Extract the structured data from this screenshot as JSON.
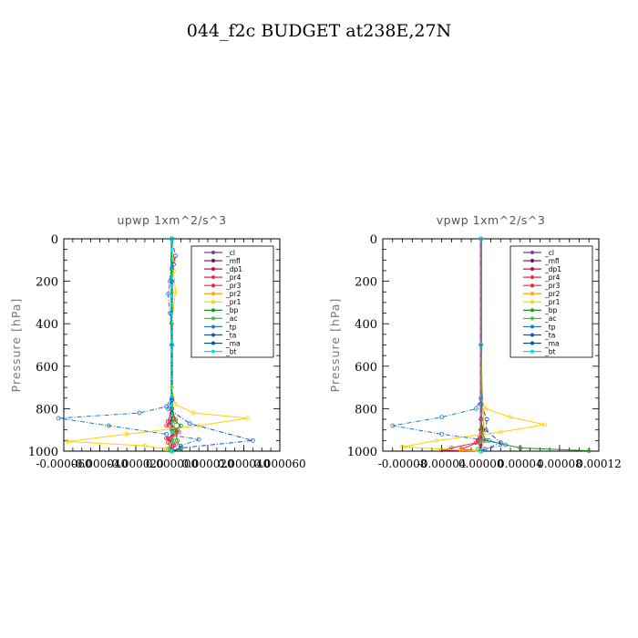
{
  "title": "044_f2c  BUDGET at238E,27N",
  "chart_data": [
    {
      "type": "line",
      "title": "upwp    1xm^2/s^3",
      "ylabel": "Pressure  [hPa]",
      "y_inverted": true,
      "ylim": [
        0,
        1000
      ],
      "xlim": [
        -6e-05,
        6e-05
      ],
      "y_ticks": [
        0,
        200,
        400,
        600,
        800,
        1000
      ],
      "x_tick_labels": [
        "-0.000060",
        "-0.000040",
        "-0.000020",
        "0.000000",
        "0.000020",
        "0.000040",
        "0.000060"
      ],
      "legend": "top-right",
      "series": [
        {
          "name": "_cl",
          "color": "#7b3fa0",
          "points": [
            [
              0,
              0
            ],
            [
              0,
              400
            ],
            [
              0,
              800
            ],
            [
              0,
              1000
            ]
          ]
        },
        {
          "name": "_mfl",
          "color": "#7a0a5a",
          "points": [
            [
              0,
              0
            ],
            [
              0,
              400
            ],
            [
              0,
              800
            ],
            [
              0,
              900
            ],
            [
              0,
              1000
            ]
          ]
        },
        {
          "name": "_dp1",
          "color": "#c0103c",
          "points": [
            [
              0,
              0
            ],
            [
              0,
              800
            ],
            [
              -2e-06,
              860
            ],
            [
              3e-06,
              900
            ],
            [
              -2e-06,
              940
            ],
            [
              1e-06,
              970
            ],
            [
              0,
              1000
            ]
          ]
        },
        {
          "name": "_pr4",
          "color": "#e03050",
          "points": [
            [
              0,
              0
            ],
            [
              0,
              800
            ],
            [
              2e-06,
              850
            ],
            [
              -3e-06,
              880
            ],
            [
              4e-06,
              910
            ],
            [
              -3e-06,
              940
            ],
            [
              2e-06,
              970
            ],
            [
              0,
              1000
            ]
          ]
        },
        {
          "name": "_pr3",
          "color": "#ff2020",
          "points": [
            [
              0,
              0
            ],
            [
              0,
              820
            ],
            [
              -1e-06,
              870
            ],
            [
              2e-06,
              920
            ],
            [
              -2e-06,
              960
            ],
            [
              0,
              1000
            ]
          ]
        },
        {
          "name": "_pr2",
          "color": "#ffa500",
          "points": [
            [
              0,
              0
            ],
            [
              1e-06,
              100
            ],
            [
              0,
              200
            ],
            [
              0,
              500
            ],
            [
              0,
              800
            ],
            [
              2e-06,
              900
            ],
            [
              0,
              1000
            ]
          ]
        },
        {
          "name": "_pr1",
          "color": "#ffd000",
          "points": [
            [
              0,
              0
            ],
            [
              1e-06,
              150
            ],
            [
              2e-06,
              250
            ],
            [
              0,
              400
            ],
            [
              0,
              700
            ],
            [
              2e-06,
              780
            ],
            [
              1.2e-05,
              820
            ],
            [
              4.2e-05,
              845
            ],
            [
              1.5e-05,
              880
            ],
            [
              -2.5e-05,
              920
            ],
            [
              -5.8e-05,
              955
            ],
            [
              -1.5e-05,
              975
            ],
            [
              -3e-06,
              990
            ],
            [
              0,
              1000
            ]
          ]
        },
        {
          "name": "_bp",
          "color": "#209020",
          "points": [
            [
              0,
              0
            ],
            [
              0,
              800
            ],
            [
              2e-06,
              860
            ],
            [
              5e-06,
              880
            ],
            [
              2e-06,
              900
            ],
            [
              3e-06,
              950
            ],
            [
              5e-06,
              990
            ],
            [
              0,
              1000
            ]
          ]
        },
        {
          "name": "_ac",
          "color": "#40c040",
          "points": [
            [
              0,
              0
            ],
            [
              0,
              900
            ],
            [
              1e-06,
              950
            ],
            [
              -2e-06,
              990
            ],
            [
              0,
              1000
            ]
          ]
        },
        {
          "name": "_tp",
          "color": "#1e78c0",
          "points": [
            [
              0,
              0
            ],
            [
              -1e-06,
              200
            ],
            [
              -2e-06,
              260
            ],
            [
              -1e-06,
              350
            ],
            [
              0,
              500
            ],
            [
              0,
              750
            ],
            [
              -3e-06,
              790
            ],
            [
              -1.8e-05,
              820
            ],
            [
              -6.3e-05,
              845
            ],
            [
              -3.5e-05,
              880
            ],
            [
              -3e-06,
              920
            ],
            [
              1.5e-05,
              945
            ],
            [
              5e-06,
              975
            ],
            [
              0,
              1000
            ]
          ]
        },
        {
          "name": "_ta",
          "color": "#1050d0",
          "points": [
            [
              0,
              0
            ],
            [
              2e-06,
              80
            ],
            [
              1e-06,
              120
            ],
            [
              0,
              200
            ],
            [
              0,
              500
            ],
            [
              0,
              760
            ],
            [
              -2e-06,
              800
            ],
            [
              1e-05,
              870
            ],
            [
              4.5e-05,
              950
            ],
            [
              5e-06,
              985
            ],
            [
              0,
              1000
            ]
          ]
        },
        {
          "name": "_ma",
          "color": "#0050a0",
          "points": [
            [
              0,
              0
            ],
            [
              0,
              500
            ],
            [
              0,
              1000
            ]
          ]
        },
        {
          "name": "_bt",
          "color": "#00e0e0",
          "points": [
            [
              0,
              0
            ],
            [
              0,
              500
            ],
            [
              0,
              1000
            ]
          ]
        }
      ]
    },
    {
      "type": "line",
      "title": "vpwp    1xm^2/s^3",
      "ylabel": "Pressure  [hPa]",
      "y_inverted": true,
      "ylim": [
        0,
        1000
      ],
      "xlim": [
        -0.0001,
        0.00012
      ],
      "y_ticks": [
        0,
        200,
        400,
        600,
        800,
        1000
      ],
      "x_tick_labels": [
        "-0.00008",
        "-0.00004",
        "0.00000",
        "0.00004",
        "0.00008",
        "0.00012"
      ],
      "x_tick_values": [
        -8e-05,
        -4e-05,
        0,
        4e-05,
        8e-05,
        0.00012
      ],
      "legend": "top-right",
      "series": [
        {
          "name": "_cl",
          "color": "#7b3fa0",
          "points": [
            [
              0,
              0
            ],
            [
              0,
              500
            ],
            [
              0,
              1000
            ]
          ]
        },
        {
          "name": "_mfl",
          "color": "#7a0a5a",
          "points": [
            [
              0,
              0
            ],
            [
              0,
              500
            ],
            [
              0,
              900
            ],
            [
              0,
              1000
            ]
          ]
        },
        {
          "name": "_dp1",
          "color": "#c0103c",
          "points": [
            [
              0,
              0
            ],
            [
              0,
              850
            ],
            [
              2e-06,
              900
            ],
            [
              -3e-06,
              950
            ],
            [
              0,
              1000
            ]
          ]
        },
        {
          "name": "_pr4",
          "color": "#e03050",
          "points": [
            [
              0,
              0
            ],
            [
              0,
              900
            ],
            [
              -5e-06,
              960
            ],
            [
              -3e-05,
              985
            ],
            [
              -4e-05,
              995
            ],
            [
              0,
              1000
            ]
          ]
        },
        {
          "name": "_pr3",
          "color": "#ff2020",
          "points": [
            [
              0,
              0
            ],
            [
              0,
              900
            ],
            [
              2e-06,
              950
            ],
            [
              -2e-05,
              990
            ],
            [
              0,
              1000
            ]
          ]
        },
        {
          "name": "_pr2",
          "color": "#ffa500",
          "points": [
            [
              0,
              0
            ],
            [
              0,
              500
            ],
            [
              3e-06,
              950
            ],
            [
              0,
              1000
            ]
          ]
        },
        {
          "name": "_pr1",
          "color": "#ffd000",
          "points": [
            [
              0,
              0
            ],
            [
              0,
              750
            ],
            [
              5e-06,
              800
            ],
            [
              3e-05,
              840
            ],
            [
              6.5e-05,
              875
            ],
            [
              2e-05,
              910
            ],
            [
              -4.5e-05,
              950
            ],
            [
              -8e-05,
              980
            ],
            [
              -2e-05,
              995
            ],
            [
              0,
              1000
            ]
          ]
        },
        {
          "name": "_bp",
          "color": "#209020",
          "points": [
            [
              0,
              0
            ],
            [
              0,
              900
            ],
            [
              5e-06,
              950
            ],
            [
              4e-05,
              985
            ],
            [
              0.00011,
              998
            ]
          ]
        },
        {
          "name": "_ac",
          "color": "#40c040",
          "points": [
            [
              0,
              0
            ],
            [
              0,
              950
            ],
            [
              -3e-06,
              990
            ],
            [
              0,
              1000
            ]
          ]
        },
        {
          "name": "_tp",
          "color": "#1e78c0",
          "points": [
            [
              0,
              0
            ],
            [
              0,
              750
            ],
            [
              -5e-06,
              800
            ],
            [
              -4e-05,
              840
            ],
            [
              -9e-05,
              880
            ],
            [
              -4e-05,
              920
            ],
            [
              8e-06,
              950
            ],
            [
              2.5e-05,
              970
            ],
            [
              4e-06,
              990
            ],
            [
              0,
              1000
            ]
          ]
        },
        {
          "name": "_ta",
          "color": "#1050d0",
          "points": [
            [
              0,
              0
            ],
            [
              0,
              780
            ],
            [
              6e-06,
              850
            ],
            [
              5e-06,
              900
            ],
            [
              2e-05,
              960
            ],
            [
              0,
              1000
            ]
          ]
        },
        {
          "name": "_ma",
          "color": "#0050a0",
          "points": [
            [
              0,
              0
            ],
            [
              0,
              500
            ],
            [
              0,
              1000
            ]
          ]
        },
        {
          "name": "_bt",
          "color": "#00e0e0",
          "points": [
            [
              0,
              0
            ],
            [
              0,
              500
            ],
            [
              0,
              1000
            ]
          ]
        }
      ]
    }
  ]
}
